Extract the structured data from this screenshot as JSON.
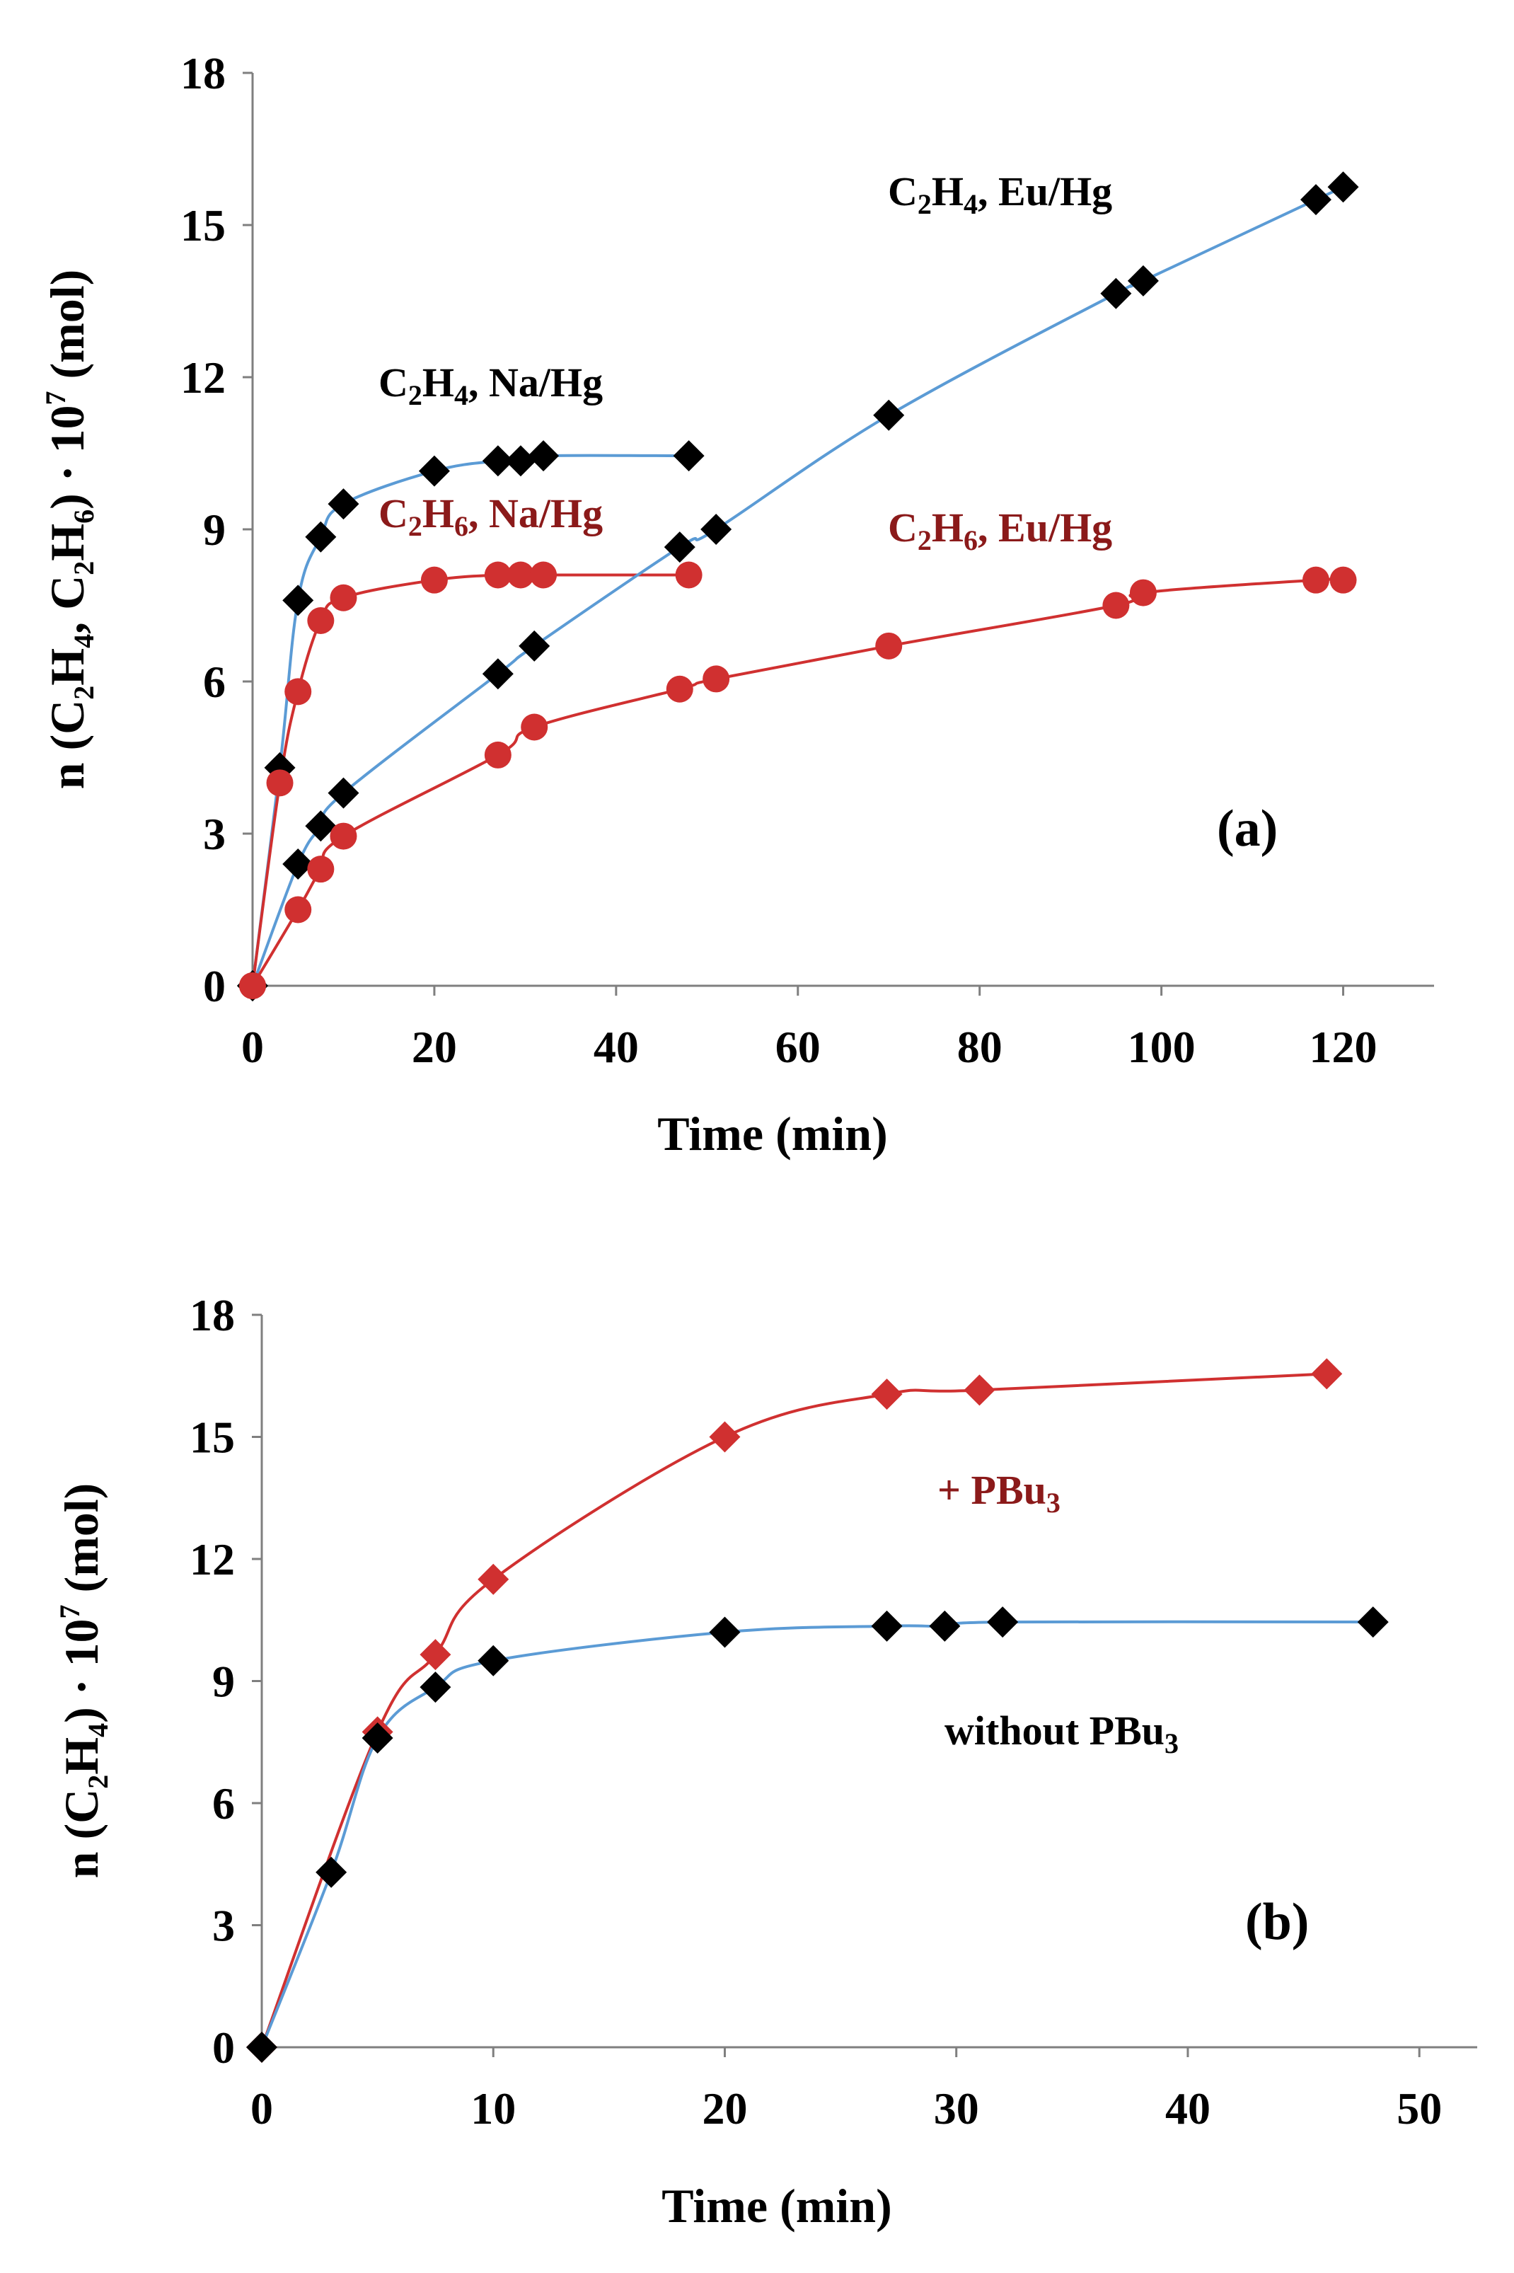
{
  "chart_data": [
    {
      "type": "line",
      "panel_label": "(a)",
      "xlabel": "Time (min)",
      "ylabel": {
        "pre": "n (C",
        "s1": "2",
        "m1": "H",
        "s2": "4",
        "m2": ", C",
        "s3": "2",
        "m3": "H",
        "s4": "6",
        "m4": ") · 10",
        "sup": "7",
        "post": " (mol)"
      },
      "xlim": [
        0,
        130
      ],
      "ylim": [
        0,
        18
      ],
      "xticks": [
        0,
        20,
        40,
        60,
        80,
        100,
        120
      ],
      "yticks": [
        0,
        3,
        6,
        9,
        12,
        15,
        18
      ],
      "series": [
        {
          "name": "C2H4, Na/Hg",
          "label": {
            "a": "C",
            "s1": "2",
            "b": "H",
            "s2": "4",
            "c": ", Na/Hg"
          },
          "marker": "diamond",
          "line_color": "#5b9bd5",
          "marker_color": "#000000",
          "label_color": "#000000",
          "x": [
            0,
            3,
            5,
            7.5,
            10,
            20,
            27,
            29.5,
            32,
            48
          ],
          "y": [
            0,
            4.3,
            7.6,
            8.85,
            9.5,
            10.15,
            10.35,
            10.35,
            10.45,
            10.45
          ]
        },
        {
          "name": "C2H6, Na/Hg",
          "label": {
            "a": "C",
            "s1": "2",
            "b": "H",
            "s2": "6",
            "c": ", Na/Hg"
          },
          "marker": "circle",
          "line_color": "#d03030",
          "marker_color": "#d03030",
          "label_color": "#8b1a1a",
          "x": [
            0,
            3,
            5,
            7.5,
            10,
            20,
            27,
            29.5,
            32,
            48
          ],
          "y": [
            0,
            4.0,
            5.8,
            7.2,
            7.65,
            8.0,
            8.1,
            8.1,
            8.1,
            8.1
          ]
        },
        {
          "name": "C2H4, Eu/Hg",
          "label": {
            "a": "C",
            "s1": "2",
            "b": "H",
            "s2": "4",
            "c": ", Eu/Hg"
          },
          "marker": "diamond",
          "line_color": "#5b9bd5",
          "marker_color": "#000000",
          "label_color": "#000000",
          "x": [
            0,
            5,
            7.5,
            10,
            27,
            31,
            47,
            51,
            70,
            95,
            98,
            117,
            120
          ],
          "y": [
            0,
            2.4,
            3.15,
            3.8,
            6.15,
            6.7,
            8.65,
            9.0,
            11.25,
            13.65,
            13.9,
            15.5,
            15.75
          ]
        },
        {
          "name": "C2H6, Eu/Hg",
          "label": {
            "a": "C",
            "s1": "2",
            "b": "H",
            "s2": "6",
            "c": ", Eu/Hg"
          },
          "marker": "circle",
          "line_color": "#d03030",
          "marker_color": "#d03030",
          "label_color": "#8b1a1a",
          "x": [
            0,
            5,
            7.5,
            10,
            27,
            31,
            47,
            51,
            70,
            95,
            98,
            117,
            120
          ],
          "y": [
            0,
            1.5,
            2.3,
            2.95,
            4.55,
            5.1,
            5.85,
            6.05,
            6.7,
            7.5,
            7.75,
            8.0,
            8.0
          ]
        }
      ]
    },
    {
      "type": "line",
      "panel_label": "(b)",
      "xlabel": "Time (min)",
      "ylabel": {
        "pre": "n (C",
        "s1": "2",
        "m1": "H",
        "s2": "4",
        "m2": ") · 10",
        "sup": "7",
        "post": " (mol)"
      },
      "xlim": [
        0,
        52.5
      ],
      "ylim": [
        0,
        18
      ],
      "xticks": [
        0,
        10,
        20,
        30,
        40,
        50
      ],
      "yticks": [
        0,
        3,
        6,
        9,
        12,
        15,
        18
      ],
      "series": [
        {
          "name": "+ PBu3",
          "label": {
            "a": "+ PBu",
            "s1": "3"
          },
          "marker": "diamond",
          "line_color": "#d03030",
          "marker_color": "#d03030",
          "label_color": "#8b1a1a",
          "x": [
            0,
            5,
            7.5,
            10,
            20,
            27,
            31,
            46
          ],
          "y": [
            0,
            7.75,
            9.65,
            11.5,
            15.0,
            16.05,
            16.15,
            16.55
          ]
        },
        {
          "name": "without PBu3",
          "label": {
            "a": "without PBu",
            "s1": "3"
          },
          "marker": "diamond",
          "line_color": "#5b9bd5",
          "marker_color": "#000000",
          "label_color": "#000000",
          "x": [
            0,
            3,
            5,
            7.5,
            10,
            20,
            27,
            29.5,
            32,
            48
          ],
          "y": [
            0,
            4.3,
            7.6,
            8.85,
            9.5,
            10.2,
            10.35,
            10.35,
            10.45,
            10.45
          ]
        }
      ]
    }
  ]
}
